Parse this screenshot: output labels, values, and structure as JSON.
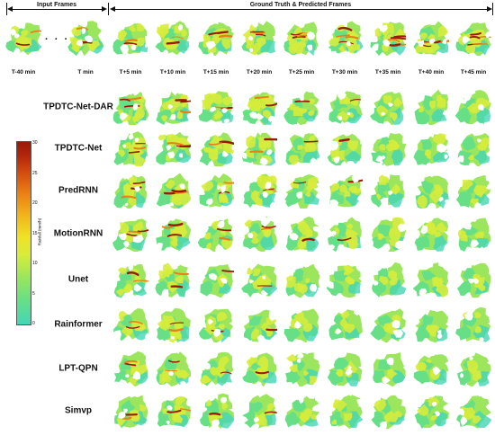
{
  "header": {
    "input_title": "Input Frames",
    "ground_truth_title": "Ground Truth & Predicted Frames",
    "ellipsis": "· · ·"
  },
  "time_labels": [
    "T-40 min",
    "T min",
    "T+5 min",
    "T+10 min",
    "T+15 min",
    "T+20 min",
    "T+25 min",
    "T+30 min",
    "T+35 min",
    "T+40 min",
    "T+45 min"
  ],
  "models": [
    "TPDTC-Net-DAR",
    "TPDTC-Net",
    "PredRNN",
    "MotionRNN",
    "Unet",
    "Rainformer",
    "LPT-QPN",
    "Simvp"
  ],
  "colorbar": {
    "label": "Rainfall (mm/h)",
    "ticks": [
      "30",
      "25",
      "20",
      "15",
      "10",
      "5",
      "0"
    ],
    "colors": [
      "#44d6b7",
      "#66df87",
      "#9be65c",
      "#d7ec3b",
      "#efe225",
      "#f2b31c",
      "#ea7f15",
      "#d2480e",
      "#9a1a08"
    ]
  }
}
